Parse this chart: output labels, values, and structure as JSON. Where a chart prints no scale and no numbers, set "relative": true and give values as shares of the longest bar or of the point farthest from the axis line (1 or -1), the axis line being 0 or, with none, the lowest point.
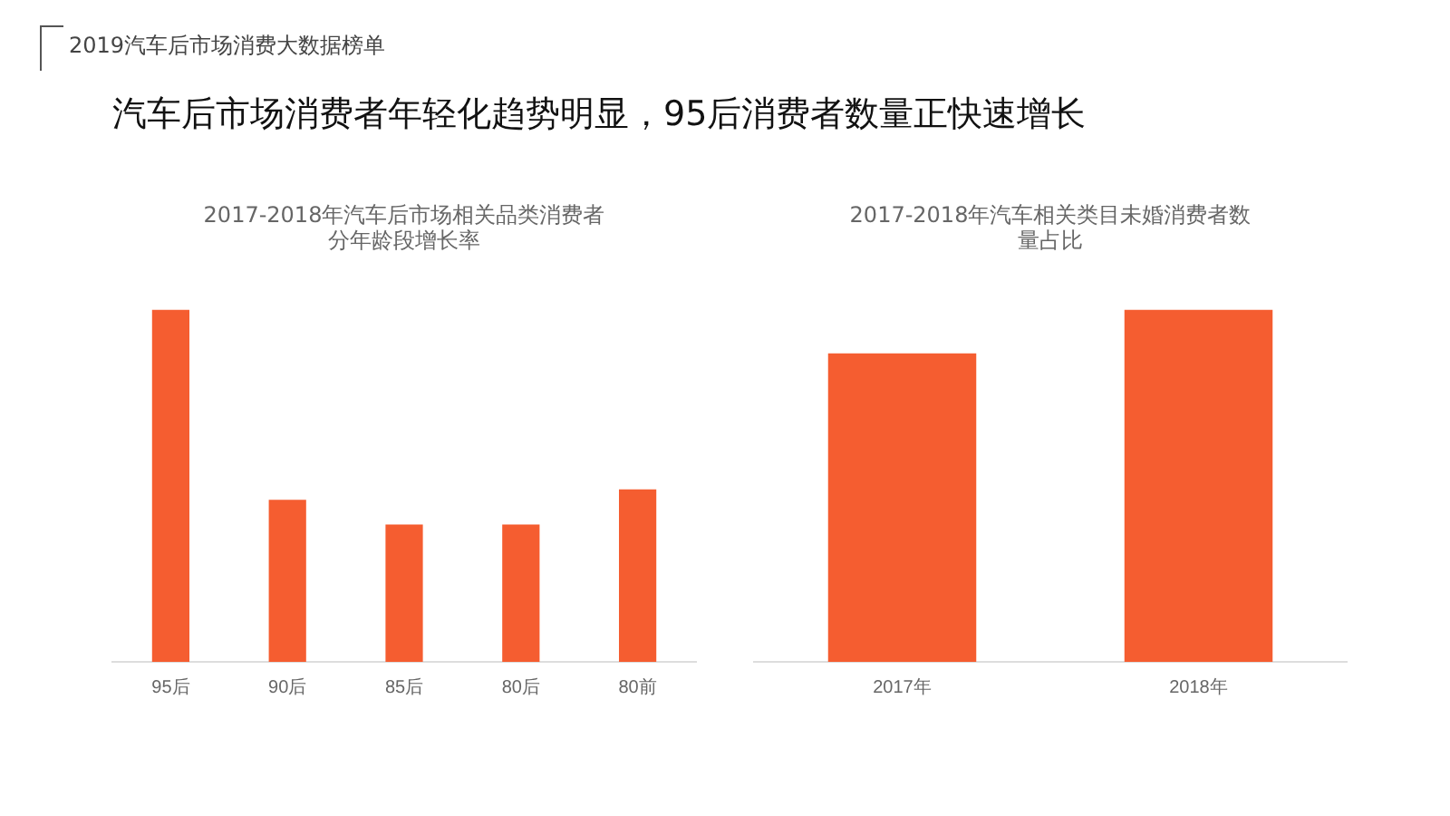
{
  "chart_data": [
    {
      "type": "bar",
      "title": "2017-2018年汽车后市场相关品类消费者分年龄段增长率",
      "categories": [
        "95后",
        "90后",
        "85后",
        "80后",
        "80前"
      ],
      "values": [
        1,
        0.46,
        0.39,
        0.39,
        0.49
      ],
      "color": "#f55d30",
      "relative": true,
      "annotations": [
        "2019汽车后市场消费大数据榜单",
        "汽车后市场消费者年轻化趋势明显，95后消费者数量正快速增长"
      ]
    },
    {
      "type": "bar",
      "title": "2017-2018年汽车相关类目未婚消费者数量占比",
      "categories": [
        "2017年",
        "2018年"
      ],
      "values": [
        0.876,
        1
      ],
      "color": "#f55d30",
      "relative": true
    }
  ]
}
